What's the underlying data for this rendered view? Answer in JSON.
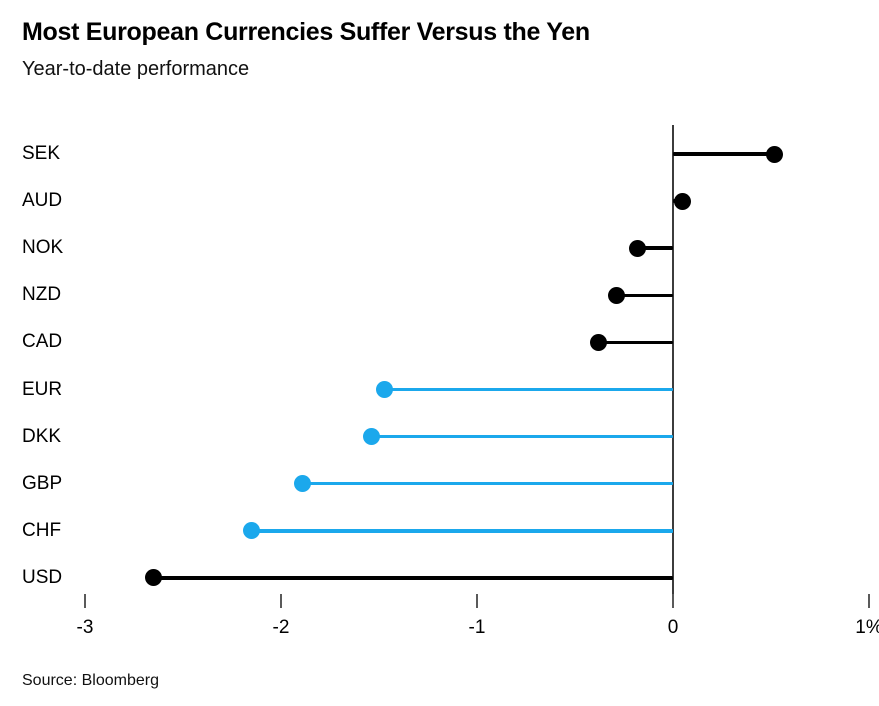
{
  "header": {
    "title": "Most European Currencies Suffer Versus the Yen",
    "subtitle": "Year-to-date performance"
  },
  "footer": {
    "source": "Source: Bloomberg"
  },
  "chart_data": {
    "type": "bar",
    "variant": "horizontal-lollipop",
    "title": "Most European Currencies Suffer Versus the Yen",
    "subtitle": "Year-to-date performance",
    "xlabel": "",
    "ylabel": "",
    "categories": [
      "SEK",
      "AUD",
      "NOK",
      "NZD",
      "CAD",
      "EUR",
      "DKK",
      "GBP",
      "CHF",
      "USD"
    ],
    "values": [
      0.52,
      0.05,
      -0.18,
      -0.29,
      -0.38,
      -1.47,
      -1.54,
      -1.89,
      -2.15,
      -2.65
    ],
    "point_colors": [
      "#000000",
      "#000000",
      "#000000",
      "#000000",
      "#000000",
      "#1ba8ec",
      "#1ba8ec",
      "#1ba8ec",
      "#1ba8ec",
      "#000000"
    ],
    "xlim": [
      -3.33,
      1.05
    ],
    "x_ticks": [
      {
        "value": -3,
        "label": "-3"
      },
      {
        "value": -2,
        "label": "-2"
      },
      {
        "value": -1,
        "label": "-1"
      },
      {
        "value": 0,
        "label": "0"
      },
      {
        "value": 1,
        "label": "1%"
      }
    ],
    "grid": false,
    "legend": false,
    "colors": {
      "other_currency": "#000000",
      "european_currency": "#1ba8ec",
      "zero_axis": "#3c3c3c",
      "tick": "#5a5a5a"
    }
  }
}
